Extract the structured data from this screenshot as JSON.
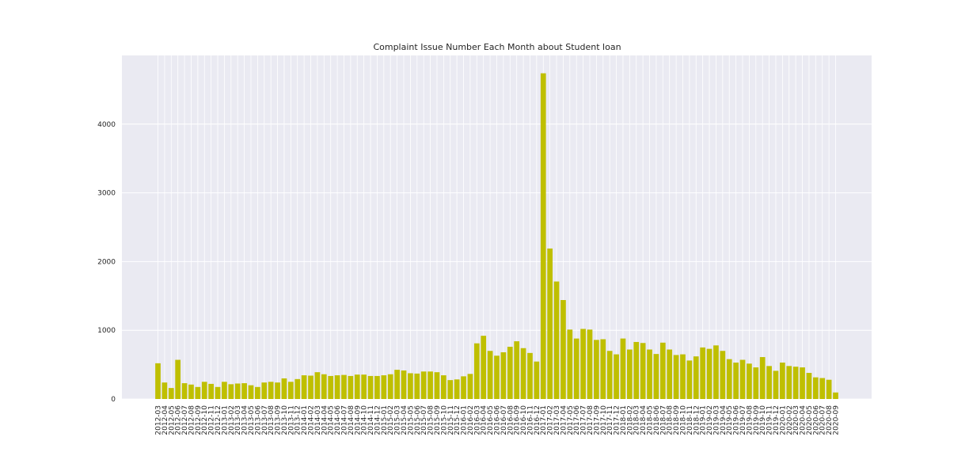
{
  "chart_data": {
    "type": "bar",
    "title": "Complaint Issue Number Each Month about Student loan",
    "xlabel": "",
    "ylabel": "",
    "ylim": [
      0,
      5000
    ],
    "yticks": [
      0,
      1000,
      2000,
      3000,
      4000
    ],
    "grid": true,
    "legend": "none",
    "colors": {
      "bar": "#bfbf00",
      "background": "#eaeaf2",
      "grid": "#ffffff",
      "text": "#262626"
    },
    "categories": [
      "2012-03",
      "2012-04",
      "2012-05",
      "2012-06",
      "2012-07",
      "2012-08",
      "2012-09",
      "2012-10",
      "2012-11",
      "2012-12",
      "2013-01",
      "2013-02",
      "2013-03",
      "2013-04",
      "2013-05",
      "2013-06",
      "2013-07",
      "2013-08",
      "2013-09",
      "2013-10",
      "2013-11",
      "2013-12",
      "2014-01",
      "2014-02",
      "2014-03",
      "2014-04",
      "2014-05",
      "2014-06",
      "2014-07",
      "2014-08",
      "2014-09",
      "2014-10",
      "2014-11",
      "2014-12",
      "2015-01",
      "2015-02",
      "2015-03",
      "2015-04",
      "2015-05",
      "2015-06",
      "2015-07",
      "2015-08",
      "2015-09",
      "2015-10",
      "2015-11",
      "2015-12",
      "2016-01",
      "2016-02",
      "2016-03",
      "2016-04",
      "2016-05",
      "2016-06",
      "2016-07",
      "2016-08",
      "2016-09",
      "2016-10",
      "2016-11",
      "2016-12",
      "2017-01",
      "2017-02",
      "2017-03",
      "2017-04",
      "2017-05",
      "2017-06",
      "2017-07",
      "2017-08",
      "2017-09",
      "2017-10",
      "2017-11",
      "2017-12",
      "2018-01",
      "2018-02",
      "2018-03",
      "2018-04",
      "2018-05",
      "2018-06",
      "2018-07",
      "2018-08",
      "2018-09",
      "2018-10",
      "2018-11",
      "2018-12",
      "2019-01",
      "2019-02",
      "2019-03",
      "2019-04",
      "2019-05",
      "2019-06",
      "2019-07",
      "2019-08",
      "2019-09",
      "2019-10",
      "2019-11",
      "2019-12",
      "2020-01",
      "2020-02",
      "2020-03",
      "2020-04",
      "2020-05",
      "2020-06",
      "2020-07",
      "2020-08",
      "2020-09"
    ],
    "values": [
      520,
      240,
      160,
      570,
      230,
      210,
      175,
      250,
      220,
      175,
      250,
      215,
      225,
      230,
      200,
      175,
      240,
      250,
      240,
      300,
      250,
      290,
      345,
      340,
      390,
      360,
      335,
      345,
      350,
      335,
      355,
      355,
      335,
      335,
      345,
      360,
      425,
      415,
      375,
      370,
      400,
      400,
      390,
      345,
      275,
      285,
      330,
      365,
      810,
      920,
      700,
      630,
      680,
      760,
      840,
      740,
      670,
      545,
      4740,
      2190,
      1710,
      1440,
      1010,
      880,
      1020,
      1010,
      860,
      870,
      700,
      650,
      880,
      720,
      830,
      815,
      720,
      655,
      820,
      720,
      640,
      650,
      560,
      620,
      750,
      730,
      780,
      700,
      580,
      530,
      570,
      515,
      460,
      610,
      480,
      410,
      530,
      480,
      470,
      460,
      380,
      315,
      305,
      280,
      95
    ]
  }
}
